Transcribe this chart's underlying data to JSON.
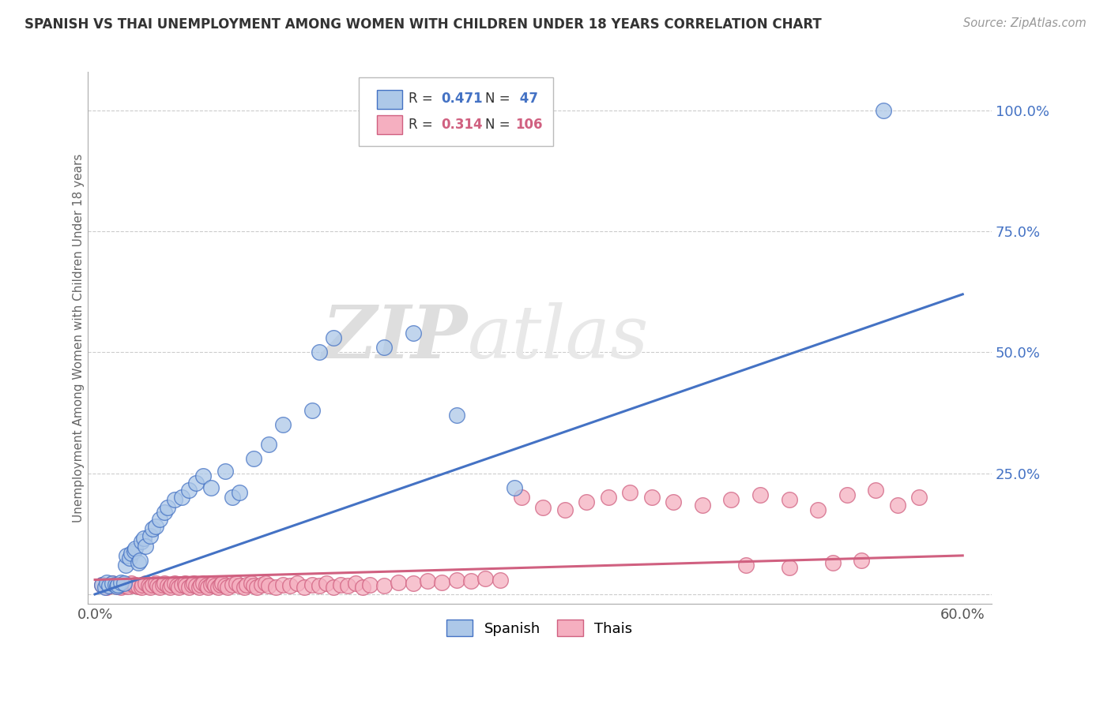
{
  "title": "SPANISH VS THAI UNEMPLOYMENT AMONG WOMEN WITH CHILDREN UNDER 18 YEARS CORRELATION CHART",
  "source": "Source: ZipAtlas.com",
  "ylabel": "Unemployment Among Women with Children Under 18 years",
  "xlim": [
    -0.005,
    0.62
  ],
  "ylim": [
    -0.02,
    1.08
  ],
  "xticks": [
    0.0,
    0.1,
    0.2,
    0.3,
    0.4,
    0.5,
    0.6
  ],
  "xticklabels": [
    "0.0%",
    "",
    "",
    "",
    "",
    "",
    "60.0%"
  ],
  "ytick_positions": [
    0.0,
    0.25,
    0.5,
    0.75,
    1.0
  ],
  "ytick_labels": [
    "",
    "25.0%",
    "50.0%",
    "75.0%",
    "100.0%"
  ],
  "spanish_R": 0.471,
  "spanish_N": 47,
  "thai_R": 0.314,
  "thai_N": 106,
  "spanish_color": "#adc8e8",
  "thai_color": "#f5afc0",
  "spanish_line_color": "#4472c4",
  "thai_line_color": "#d06080",
  "watermark_zip": "ZIP",
  "watermark_atlas": "atlas",
  "background_color": "#ffffff",
  "sp_line_start_y": 0.0,
  "sp_line_end_y": 0.62,
  "th_line_start_y": 0.03,
  "th_line_end_y": 0.08,
  "sp_x": [
    0.005,
    0.007,
    0.008,
    0.01,
    0.012,
    0.014,
    0.015,
    0.016,
    0.018,
    0.02,
    0.021,
    0.022,
    0.024,
    0.025,
    0.027,
    0.028,
    0.03,
    0.031,
    0.032,
    0.034,
    0.035,
    0.038,
    0.04,
    0.042,
    0.045,
    0.048,
    0.05,
    0.055,
    0.06,
    0.065,
    0.07,
    0.075,
    0.08,
    0.09,
    0.095,
    0.1,
    0.11,
    0.12,
    0.13,
    0.15,
    0.155,
    0.165,
    0.2,
    0.22,
    0.25,
    0.29,
    0.545
  ],
  "sp_y": [
    0.02,
    0.015,
    0.025,
    0.018,
    0.022,
    0.02,
    0.017,
    0.019,
    0.025,
    0.022,
    0.06,
    0.08,
    0.075,
    0.085,
    0.09,
    0.095,
    0.065,
    0.07,
    0.11,
    0.115,
    0.1,
    0.12,
    0.135,
    0.14,
    0.155,
    0.17,
    0.18,
    0.195,
    0.2,
    0.215,
    0.23,
    0.245,
    0.22,
    0.255,
    0.2,
    0.21,
    0.28,
    0.31,
    0.35,
    0.38,
    0.5,
    0.53,
    0.51,
    0.54,
    0.37,
    0.22,
    1.0
  ],
  "th_x": [
    0.005,
    0.008,
    0.01,
    0.012,
    0.015,
    0.017,
    0.018,
    0.02,
    0.022,
    0.023,
    0.025,
    0.027,
    0.028,
    0.03,
    0.032,
    0.033,
    0.035,
    0.037,
    0.038,
    0.04,
    0.042,
    0.043,
    0.045,
    0.047,
    0.048,
    0.05,
    0.052,
    0.053,
    0.055,
    0.057,
    0.058,
    0.06,
    0.062,
    0.063,
    0.065,
    0.067,
    0.068,
    0.07,
    0.072,
    0.073,
    0.075,
    0.077,
    0.078,
    0.08,
    0.082,
    0.083,
    0.085,
    0.087,
    0.088,
    0.09,
    0.092,
    0.095,
    0.098,
    0.1,
    0.103,
    0.105,
    0.108,
    0.11,
    0.112,
    0.115,
    0.118,
    0.12,
    0.125,
    0.13,
    0.135,
    0.14,
    0.145,
    0.15,
    0.155,
    0.16,
    0.165,
    0.17,
    0.175,
    0.18,
    0.185,
    0.19,
    0.2,
    0.21,
    0.22,
    0.23,
    0.24,
    0.25,
    0.26,
    0.27,
    0.28,
    0.295,
    0.31,
    0.325,
    0.34,
    0.355,
    0.37,
    0.385,
    0.4,
    0.42,
    0.44,
    0.46,
    0.48,
    0.5,
    0.52,
    0.54,
    0.555,
    0.57,
    0.45,
    0.48,
    0.51,
    0.53
  ],
  "th_y": [
    0.02,
    0.015,
    0.018,
    0.022,
    0.017,
    0.02,
    0.015,
    0.018,
    0.02,
    0.017,
    0.022,
    0.018,
    0.02,
    0.017,
    0.015,
    0.02,
    0.022,
    0.018,
    0.015,
    0.02,
    0.022,
    0.018,
    0.015,
    0.02,
    0.022,
    0.018,
    0.015,
    0.02,
    0.022,
    0.018,
    0.015,
    0.02,
    0.022,
    0.018,
    0.015,
    0.02,
    0.022,
    0.018,
    0.015,
    0.02,
    0.022,
    0.018,
    0.015,
    0.02,
    0.022,
    0.018,
    0.015,
    0.02,
    0.022,
    0.018,
    0.015,
    0.02,
    0.022,
    0.018,
    0.015,
    0.02,
    0.022,
    0.018,
    0.015,
    0.02,
    0.022,
    0.018,
    0.015,
    0.02,
    0.018,
    0.022,
    0.015,
    0.02,
    0.018,
    0.022,
    0.015,
    0.02,
    0.018,
    0.022,
    0.015,
    0.02,
    0.018,
    0.025,
    0.022,
    0.028,
    0.025,
    0.03,
    0.028,
    0.032,
    0.03,
    0.2,
    0.18,
    0.175,
    0.19,
    0.2,
    0.21,
    0.2,
    0.19,
    0.185,
    0.195,
    0.205,
    0.195,
    0.175,
    0.205,
    0.215,
    0.185,
    0.2,
    0.06,
    0.055,
    0.065,
    0.07
  ]
}
